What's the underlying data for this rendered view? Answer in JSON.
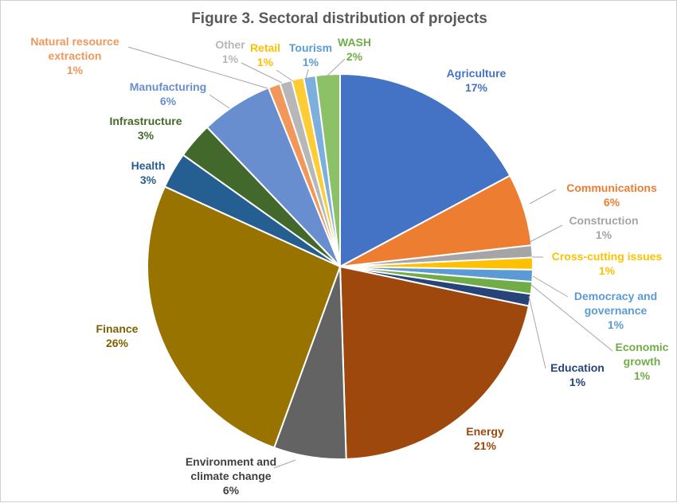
{
  "chart_data": {
    "type": "pie",
    "title": "Figure 3. Sectoral distribution of projects",
    "slices": [
      {
        "name": "Agriculture",
        "value": 17,
        "pct": "17%",
        "color": "#4472C4"
      },
      {
        "name": "Communications",
        "value": 6,
        "pct": "6%",
        "color": "#ED7D31"
      },
      {
        "name": "Construction",
        "value": 1,
        "pct": "1%",
        "color": "#A5A5A5"
      },
      {
        "name": "Cross-cutting issues",
        "value": 1,
        "pct": "1%",
        "color": "#FFC000"
      },
      {
        "name": "Democracy and governance",
        "value": 1,
        "pct": "1%",
        "color": "#5B9BD5"
      },
      {
        "name": "Economic growth",
        "value": 1,
        "pct": "1%",
        "color": "#70AD47"
      },
      {
        "name": "Education",
        "value": 1,
        "pct": "1%",
        "color": "#264478"
      },
      {
        "name": "Energy",
        "value": 21,
        "pct": "21%",
        "color": "#9E480E"
      },
      {
        "name": "Environment and climate change",
        "value": 6,
        "pct": "6%",
        "color": "#636363"
      },
      {
        "name": "Finance",
        "value": 26,
        "pct": "26%",
        "color": "#997300"
      },
      {
        "name": "Health",
        "value": 3,
        "pct": "3%",
        "color": "#255E91"
      },
      {
        "name": "Infrastructure",
        "value": 3,
        "pct": "3%",
        "color": "#43682B"
      },
      {
        "name": "Manufacturing",
        "value": 6,
        "pct": "6%",
        "color": "#698ED0"
      },
      {
        "name": "Natural resource extraction",
        "value": 1,
        "pct": "1%",
        "color": "#F1975A"
      },
      {
        "name": "Other",
        "value": 1,
        "pct": "1%",
        "color": "#B7B7B7"
      },
      {
        "name": "Retail",
        "value": 1,
        "pct": "1%",
        "color": "#FFCD33"
      },
      {
        "name": "Tourism",
        "value": 1,
        "pct": "1%",
        "color": "#7CAFDD"
      },
      {
        "name": "WASH",
        "value": 2,
        "pct": "2%",
        "color": "#8CC168"
      }
    ]
  }
}
